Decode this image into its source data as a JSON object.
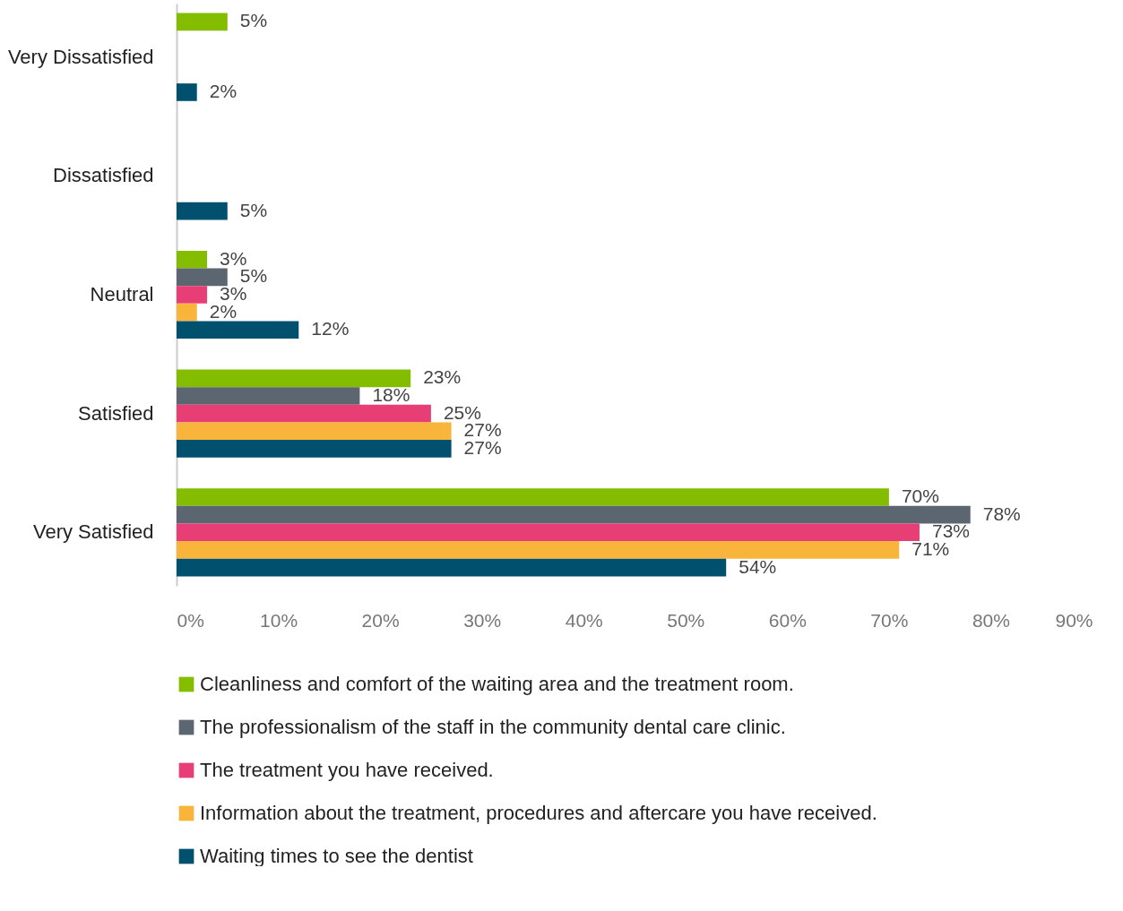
{
  "chart_data": {
    "type": "bar",
    "orientation": "horizontal",
    "categories": [
      "Very Dissatisfied",
      "Dissatisfied",
      "Neutral",
      "Satisfied",
      "Very Satisfied"
    ],
    "series": [
      {
        "name": "Cleanliness and comfort of the waiting area and the treatment room.",
        "color": "#84bd00",
        "values": [
          5,
          null,
          3,
          23,
          70
        ],
        "value_labels": [
          "5%",
          null,
          "3%",
          "23%",
          "70%"
        ]
      },
      {
        "name": "The professionalism of the staff in the community dental care clinic.",
        "color": "#5b6670",
        "values": [
          null,
          null,
          5,
          18,
          78
        ],
        "value_labels": [
          null,
          null,
          "5%",
          "18%",
          "78%"
        ]
      },
      {
        "name": "The treatment you have received.",
        "color": "#e83e76",
        "values": [
          null,
          null,
          3,
          25,
          73
        ],
        "value_labels": [
          null,
          null,
          "3%",
          "25%",
          "73%"
        ]
      },
      {
        "name": "Information about the treatment, procedures and aftercare you have received.",
        "color": "#f9b43c",
        "values": [
          null,
          null,
          2,
          27,
          71
        ],
        "value_labels": [
          null,
          null,
          "2%",
          "27%",
          "71%"
        ]
      },
      {
        "name": "Waiting times to see the dentist",
        "color": "#00506e",
        "values": [
          2,
          5,
          12,
          27,
          54
        ],
        "value_labels": [
          "2%",
          "5%",
          "12%",
          "27%",
          "54%"
        ]
      }
    ],
    "xlim": [
      0,
      90
    ],
    "xticks": [
      {
        "value": 0,
        "label": "0%"
      },
      {
        "value": 10,
        "label": "10%"
      },
      {
        "value": 20,
        "label": "20%"
      },
      {
        "value": 30,
        "label": "30%"
      },
      {
        "value": 40,
        "label": "40%"
      },
      {
        "value": 50,
        "label": "50%"
      },
      {
        "value": 60,
        "label": "60%"
      },
      {
        "value": 70,
        "label": "70%"
      },
      {
        "value": 80,
        "label": "80%"
      },
      {
        "value": 90,
        "label": "90%"
      }
    ],
    "legend": "bottom"
  }
}
